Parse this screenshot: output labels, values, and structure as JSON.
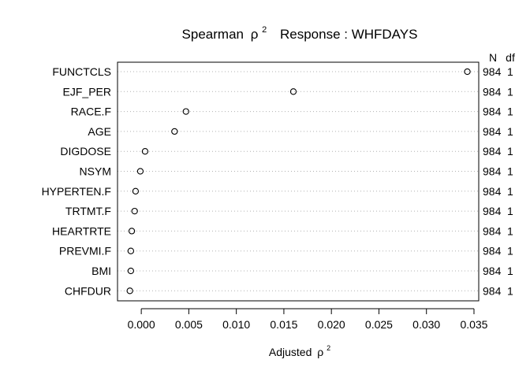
{
  "chart_data": {
    "type": "scatter",
    "orientation": "dot-chart",
    "title_main": "Spearman",
    "title_rho": "ρ",
    "title_sup": "2",
    "title_response": "Response : WHFDAYS",
    "xlabel_main": "Adjusted",
    "xlabel_rho": "ρ",
    "xlabel_sup": "2",
    "right_header_n": "N",
    "right_header_df": "df",
    "xlim": [
      -0.0025,
      0.0355
    ],
    "xticks": [
      0.0,
      0.005,
      0.01,
      0.015,
      0.02,
      0.025,
      0.03,
      0.035
    ],
    "xtick_labels": [
      "0.000",
      "0.005",
      "0.010",
      "0.015",
      "0.020",
      "0.025",
      "0.030",
      "0.035"
    ],
    "grid": "dotted-horizontal",
    "marker": "open-circle",
    "categories": [
      "FUNCTCLS",
      "EJF_PER",
      "RACE.F",
      "AGE",
      "DIGDOSE",
      "NSYM",
      "HYPERTEN.F",
      "TRTMT.F",
      "HEARTRTE",
      "PREVMI.F",
      "BMI",
      "CHFDUR"
    ],
    "values": [
      0.0343,
      0.016,
      0.0047,
      0.0035,
      0.0004,
      -0.0001,
      -0.0006,
      -0.0007,
      -0.001,
      -0.0011,
      -0.0011,
      -0.0012
    ],
    "n_values": [
      "984",
      "984",
      "984",
      "984",
      "984",
      "984",
      "984",
      "984",
      "984",
      "984",
      "984",
      "984"
    ],
    "df_values": [
      "1",
      "1",
      "1",
      "1",
      "1",
      "1",
      "1",
      "1",
      "1",
      "1",
      "1",
      "1"
    ]
  }
}
